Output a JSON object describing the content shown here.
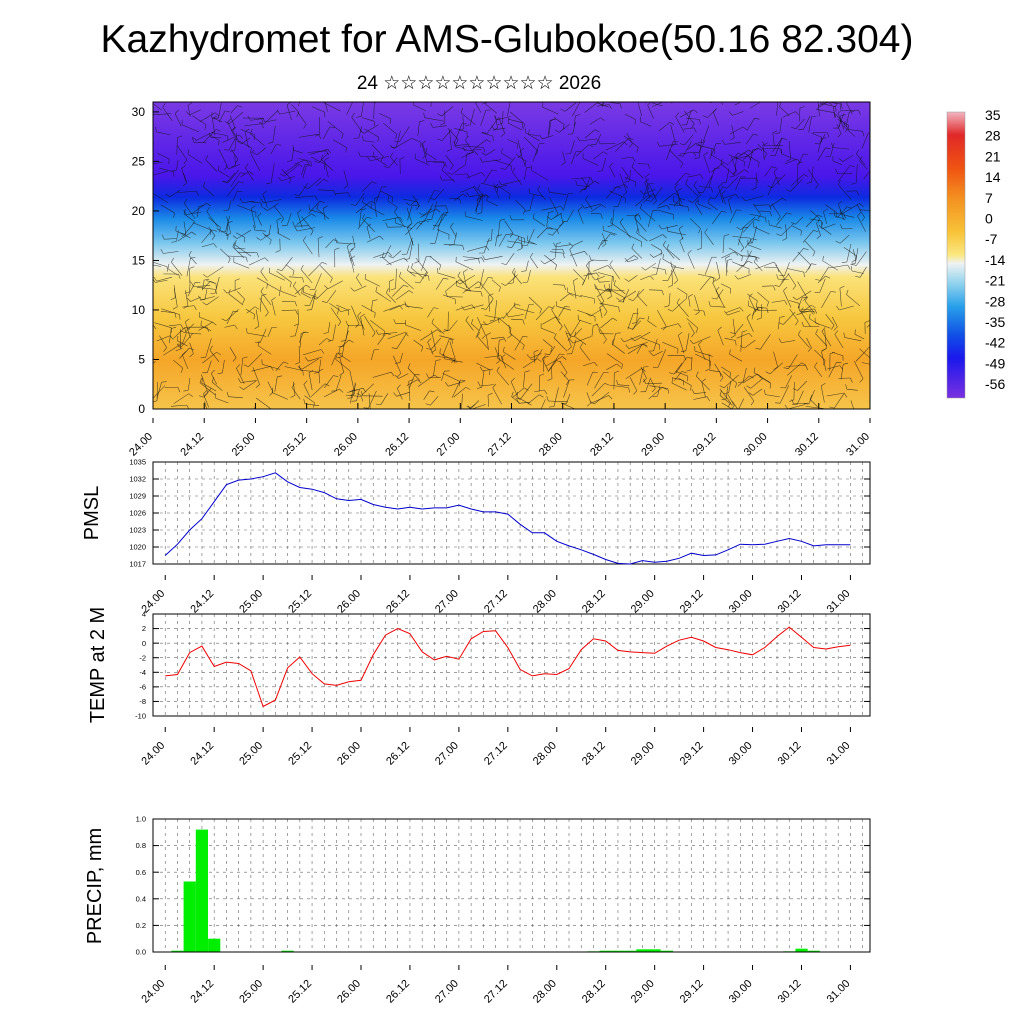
{
  "title": "Kazhydromet for AMS-Glubokoe(50.16 82.304)",
  "subtitle": "24 ☆☆☆☆☆☆☆☆☆☆ 2026",
  "x_ticks": [
    "24.00",
    "24.12",
    "25.00",
    "25.12",
    "26.00",
    "26.12",
    "27.00",
    "27.12",
    "28.00",
    "28.12",
    "29.00",
    "29.12",
    "30.00",
    "30.12",
    "31.00"
  ],
  "chart_data": [
    {
      "type": "heatmap",
      "title": "",
      "xlabel": "",
      "ylabel": "",
      "y_ticks": [
        0,
        5,
        10,
        15,
        20,
        25,
        30
      ],
      "ylim": [
        0,
        31
      ],
      "xlim": [
        24.0,
        31.0
      ],
      "colorbar_ticks": [
        35,
        28,
        21,
        14,
        7,
        0,
        -7,
        -14,
        -21,
        -28,
        -35,
        -42,
        -49,
        -56
      ],
      "colorbar_colors": [
        "#f2b6c2",
        "#dc2020",
        "#f25010",
        "#f08c20",
        "#f5b42a",
        "#f7d040",
        "#fbeb90",
        "#e6eef2",
        "#a8d8ee",
        "#46b4ec",
        "#1a86e6",
        "#1040e8",
        "#3a10ee",
        "#6a20e0"
      ],
      "approx_temperature_profile": [
        {
          "height": 0,
          "value": 2
        },
        {
          "height": 5,
          "value": 8
        },
        {
          "height": 10,
          "value": 3
        },
        {
          "height": 14,
          "value": -7
        },
        {
          "height": 17,
          "value": -28
        },
        {
          "height": 20,
          "value": -45
        },
        {
          "height": 23,
          "value": -56
        },
        {
          "height": 30,
          "value": -56
        }
      ]
    },
    {
      "type": "line",
      "ylabel": "PMSL",
      "ylim": [
        1017,
        1035
      ],
      "y_ticks": [
        1017,
        1020,
        1023,
        1026,
        1029,
        1032,
        1035
      ],
      "color": "#0000cc",
      "x": [
        24.0,
        24.125,
        24.25,
        24.375,
        24.5,
        24.625,
        24.75,
        24.875,
        25.0,
        25.125,
        25.25,
        25.375,
        25.5,
        25.625,
        25.75,
        25.875,
        26.0,
        26.125,
        26.25,
        26.375,
        26.5,
        26.625,
        26.75,
        26.875,
        27.0,
        27.125,
        27.25,
        27.375,
        27.5,
        27.625,
        27.75,
        27.875,
        28.0,
        28.125,
        28.25,
        28.375,
        28.5,
        28.625,
        28.75,
        28.875,
        29.0,
        29.125,
        29.25,
        29.375,
        29.5,
        29.625,
        29.75,
        29.875,
        30.0,
        30.125,
        30.25,
        30.375,
        30.5,
        30.625,
        30.75,
        30.875,
        31.0
      ],
      "values": [
        1018.5,
        1020.5,
        1023,
        1025,
        1028,
        1031,
        1031.8,
        1032,
        1032.4,
        1033.1,
        1031.5,
        1030.5,
        1030.2,
        1029.6,
        1028.5,
        1028.2,
        1028.4,
        1027.5,
        1027,
        1026.7,
        1027,
        1026.7,
        1026.9,
        1026.9,
        1027.4,
        1026.7,
        1026.2,
        1026.2,
        1025.8,
        1024,
        1022.5,
        1022.5,
        1021,
        1020.2,
        1019.5,
        1018.7,
        1017.8,
        1017.1,
        1017.0,
        1017.6,
        1017.3,
        1017.5,
        1018.0,
        1018.9,
        1018.5,
        1018.6,
        1019.5,
        1020.5,
        1020.4,
        1020.5,
        1021,
        1021.5,
        1021,
        1020.2,
        1020.4,
        1020.4,
        1020.4
      ]
    },
    {
      "type": "line",
      "ylabel": "TEMP at 2 M",
      "ylim": [
        -10,
        4
      ],
      "y_ticks": [
        -10,
        -8,
        -6,
        -4,
        -2,
        0,
        2,
        4
      ],
      "color": "#ee0000",
      "x": [
        24.0,
        24.125,
        24.25,
        24.375,
        24.5,
        24.625,
        24.75,
        24.875,
        25.0,
        25.125,
        25.25,
        25.375,
        25.5,
        25.625,
        25.75,
        25.875,
        26.0,
        26.125,
        26.25,
        26.375,
        26.5,
        26.625,
        26.75,
        26.875,
        27.0,
        27.125,
        27.25,
        27.375,
        27.5,
        27.625,
        27.75,
        27.875,
        28.0,
        28.125,
        28.25,
        28.375,
        28.5,
        28.625,
        28.75,
        28.875,
        29.0,
        29.125,
        29.25,
        29.375,
        29.5,
        29.625,
        29.75,
        29.875,
        30.0,
        30.125,
        30.25,
        30.375,
        30.5,
        30.625,
        30.75,
        30.875,
        31.0
      ],
      "values": [
        -4.5,
        -4.3,
        -1.3,
        -0.4,
        -3.2,
        -2.6,
        -2.8,
        -3.8,
        -8.7,
        -7.8,
        -3.4,
        -1.9,
        -4.2,
        -5.6,
        -5.8,
        -5.3,
        -5.1,
        -1.6,
        1.1,
        2.0,
        1.3,
        -1.2,
        -2.3,
        -1.8,
        -2.2,
        0.6,
        1.6,
        1.7,
        -0.6,
        -3.6,
        -4.5,
        -4.2,
        -4.3,
        -3.5,
        -0.9,
        0.6,
        0.3,
        -1.0,
        -1.2,
        -1.3,
        -1.4,
        -0.4,
        0.4,
        0.8,
        0.3,
        -0.6,
        -0.9,
        -1.3,
        -1.6,
        -0.6,
        0.9,
        2.2,
        0.8,
        -0.6,
        -0.8,
        -0.5,
        -0.3
      ]
    },
    {
      "type": "bar",
      "ylabel": "PRECIP, mm",
      "ylim": [
        0,
        1.0
      ],
      "y_ticks": [
        "0.0",
        "0.2",
        "0.4",
        "0.6",
        "0.8",
        "1.0"
      ],
      "color": "#00ee00",
      "bar_width_days": 0.125,
      "x": [
        24.125,
        24.25,
        24.375,
        24.5,
        25.25,
        28.375,
        28.5,
        28.625,
        28.75,
        28.875,
        29.0,
        29.125,
        30.375,
        30.5,
        30.625
      ],
      "values": [
        0.01,
        0.53,
        0.92,
        0.1,
        0.01,
        0.005,
        0.01,
        0.01,
        0.01,
        0.02,
        0.02,
        0.01,
        0.005,
        0.025,
        0.01
      ]
    }
  ]
}
